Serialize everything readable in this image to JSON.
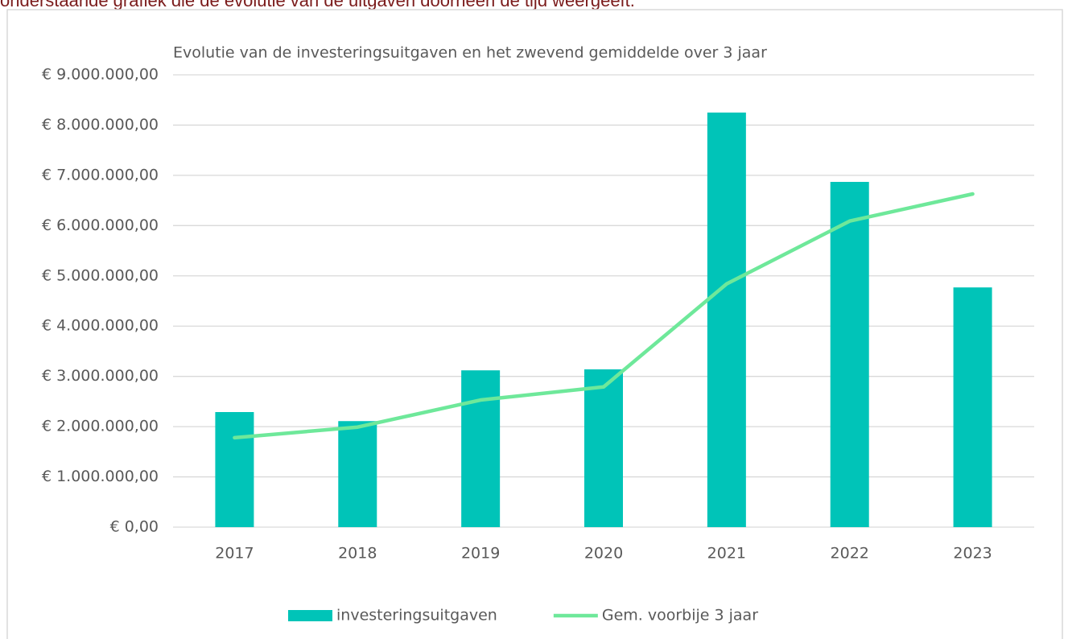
{
  "intro_text": "onderstaande grafiek die de evolutie van de uitgaven doorheen de tijd weergeeft.",
  "chart_data": {
    "type": "bar",
    "title": "Evolutie van de investeringsuitgaven en het zwevend gemiddelde over 3 jaar",
    "categories": [
      "2017",
      "2018",
      "2019",
      "2020",
      "2021",
      "2022",
      "2023"
    ],
    "series": [
      {
        "name": "investeringsuitgaven",
        "type": "bar",
        "color": "#00c4b8",
        "values": [
          2290000,
          2110000,
          3120000,
          3140000,
          8250000,
          6870000,
          4770000
        ]
      },
      {
        "name": "Gem. voorbije 3 jaar",
        "type": "line",
        "color": "#6ee89a",
        "values": [
          1780000,
          1990000,
          2530000,
          2790000,
          4840000,
          6090000,
          6630000
        ]
      }
    ],
    "ylim": [
      0,
      9000000
    ],
    "yticks": [
      {
        "value": 0,
        "label": "€ 0,00"
      },
      {
        "value": 1000000,
        "label": "€ 1.000.000,00"
      },
      {
        "value": 2000000,
        "label": "€ 2.000.000,00"
      },
      {
        "value": 3000000,
        "label": "€ 3.000.000,00"
      },
      {
        "value": 4000000,
        "label": "€ 4.000.000,00"
      },
      {
        "value": 5000000,
        "label": "€ 5.000.000,00"
      },
      {
        "value": 6000000,
        "label": "€ 6.000.000,00"
      },
      {
        "value": 7000000,
        "label": "€ 7.000.000,00"
      },
      {
        "value": 8000000,
        "label": "€ 8.000.000,00"
      },
      {
        "value": 9000000,
        "label": "€ 9.000.000,00"
      }
    ],
    "grid": true,
    "legend": "bottom"
  }
}
